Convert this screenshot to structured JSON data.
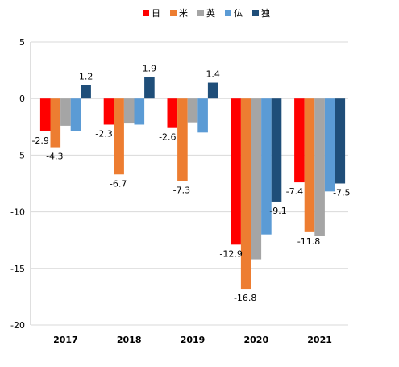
{
  "chart_data": {
    "type": "bar",
    "title": "",
    "xlabel": "",
    "ylabel": "",
    "categories": [
      "2017",
      "2018",
      "2019",
      "2020",
      "2021"
    ],
    "ylim": [
      -20,
      5
    ],
    "yticks": [
      5,
      0,
      -5,
      -10,
      -15,
      -20
    ],
    "grid": true,
    "legend_position": "top",
    "series": [
      {
        "name": "日",
        "color": "#FF0000",
        "values": [
          -2.9,
          -2.3,
          -2.6,
          -12.9,
          -7.4
        ],
        "labels": [
          "-2.9",
          "-2.3",
          "-2.6",
          "-12.9",
          "-7.4"
        ]
      },
      {
        "name": "米",
        "color": "#ED7D31",
        "values": [
          -4.3,
          -6.7,
          -7.3,
          -16.8,
          -11.8
        ],
        "labels": [
          "-4.3",
          "-6.7",
          "-7.3",
          "-16.8",
          "-11.8"
        ]
      },
      {
        "name": "英",
        "color": "#A5A5A5",
        "values": [
          -2.4,
          -2.2,
          -2.1,
          -14.2,
          -12.1
        ],
        "labels": null
      },
      {
        "name": "仏",
        "color": "#5B9BD5",
        "values": [
          -2.9,
          -2.3,
          -3.0,
          -12.0,
          -8.2
        ],
        "labels": null
      },
      {
        "name": "独",
        "color": "#1F4E79",
        "values": [
          1.2,
          1.9,
          1.4,
          -9.1,
          -7.5
        ],
        "labels": [
          "1.2",
          "1.9",
          "1.4",
          "-9.1",
          "-7.5"
        ]
      }
    ]
  }
}
